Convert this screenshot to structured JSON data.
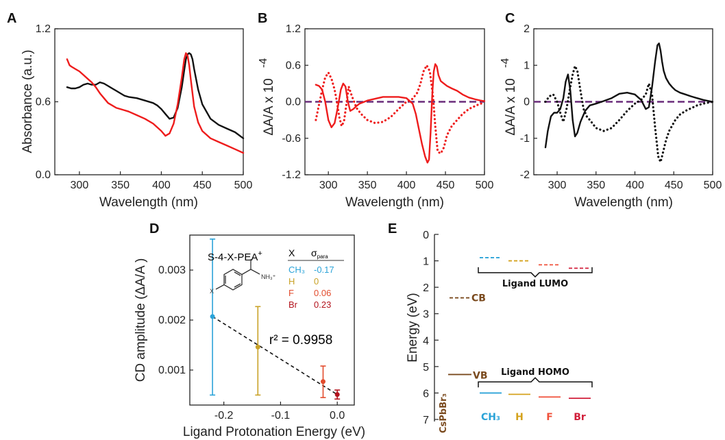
{
  "chart_data": [
    {
      "panel": "A",
      "type": "line",
      "xlabel": "Wavelength (nm)",
      "ylabel": "Absorbance (a.u.)",
      "xlim": [
        270,
        500
      ],
      "ylim": [
        0.0,
        1.2
      ],
      "xticks": [
        "300",
        "350",
        "400",
        "450",
        "500"
      ],
      "yticks": [
        "0.0",
        "0.6",
        "1.2"
      ],
      "colors": {
        "red": "#ee1c1c",
        "black": "#111111"
      },
      "series": [
        {
          "color": "#111111",
          "style": "solid",
          "x": [
            285,
            290,
            295,
            300,
            305,
            310,
            315,
            320,
            325,
            330,
            335,
            340,
            345,
            350,
            355,
            360,
            370,
            380,
            390,
            395,
            400,
            405,
            410,
            415,
            420,
            425,
            428,
            430,
            432,
            434,
            436,
            438,
            440,
            445,
            450,
            460,
            470,
            480,
            490,
            500
          ],
          "y": [
            0.72,
            0.71,
            0.71,
            0.72,
            0.74,
            0.75,
            0.74,
            0.74,
            0.76,
            0.75,
            0.73,
            0.71,
            0.69,
            0.67,
            0.65,
            0.64,
            0.63,
            0.61,
            0.59,
            0.57,
            0.54,
            0.5,
            0.46,
            0.47,
            0.55,
            0.72,
            0.86,
            0.95,
            0.99,
            1.0,
            0.99,
            0.95,
            0.87,
            0.7,
            0.58,
            0.46,
            0.41,
            0.38,
            0.35,
            0.3
          ]
        },
        {
          "color": "#ee1c1c",
          "style": "solid",
          "x": [
            285,
            288,
            290,
            295,
            300,
            305,
            310,
            315,
            320,
            325,
            330,
            335,
            340,
            345,
            350,
            355,
            360,
            370,
            380,
            390,
            400,
            405,
            410,
            415,
            420,
            425,
            428,
            430,
            432,
            434,
            436,
            440,
            445,
            450,
            460,
            470,
            480,
            490,
            500
          ],
          "y": [
            0.95,
            0.9,
            0.89,
            0.87,
            0.85,
            0.82,
            0.79,
            0.76,
            0.72,
            0.67,
            0.63,
            0.59,
            0.57,
            0.55,
            0.54,
            0.53,
            0.52,
            0.49,
            0.46,
            0.42,
            0.36,
            0.32,
            0.34,
            0.42,
            0.58,
            0.8,
            0.95,
            1.0,
            0.98,
            0.9,
            0.78,
            0.56,
            0.43,
            0.36,
            0.3,
            0.27,
            0.24,
            0.21,
            0.18
          ]
        }
      ]
    },
    {
      "panel": "B",
      "type": "line",
      "xlabel": "Wavelength (nm)",
      "ylabel": "ΔA/A x 10",
      "ylabel_exp": "-4",
      "xlim": [
        270,
        500
      ],
      "ylim": [
        -1.2,
        1.2
      ],
      "xticks": [
        "300",
        "350",
        "400",
        "450",
        "500"
      ],
      "yticks": [
        "-1.2",
        "-0.6",
        "0.0",
        "0.6",
        "1.2"
      ],
      "baseline_color": "#6a2b7a",
      "series": [
        {
          "color": "#ee1c1c",
          "style": "solid",
          "x": [
            284,
            288,
            292,
            296,
            300,
            304,
            308,
            312,
            316,
            319,
            322,
            325,
            328,
            332,
            336,
            340,
            350,
            360,
            370,
            380,
            390,
            400,
            408,
            412,
            416,
            420,
            424,
            427,
            429,
            431,
            433,
            435,
            437,
            439,
            441,
            444,
            448,
            452,
            458,
            465,
            472,
            480,
            488,
            495,
            500
          ],
          "y": [
            0.28,
            0.26,
            0.2,
            0.0,
            -0.3,
            -0.42,
            -0.35,
            -0.1,
            0.2,
            0.3,
            0.25,
            0.0,
            -0.15,
            -0.12,
            -0.07,
            -0.03,
            0.02,
            0.05,
            0.08,
            0.08,
            0.08,
            0.06,
            -0.03,
            -0.2,
            -0.45,
            -0.7,
            -0.9,
            -1.0,
            -0.95,
            -0.5,
            0.1,
            0.5,
            0.62,
            0.58,
            0.44,
            0.34,
            0.3,
            0.26,
            0.22,
            0.18,
            0.12,
            0.07,
            0.04,
            0.02,
            0.01
          ]
        },
        {
          "color": "#ee1c1c",
          "style": "dotted",
          "x": [
            284,
            288,
            292,
            296,
            300,
            304,
            308,
            311,
            314,
            317,
            320,
            323,
            326,
            330,
            336,
            342,
            350,
            360,
            370,
            380,
            390,
            400,
            408,
            414,
            418,
            422,
            426,
            430,
            434,
            437,
            440,
            444,
            448,
            452,
            458,
            465,
            472,
            480,
            488,
            495,
            500
          ],
          "y": [
            -0.3,
            -0.05,
            0.2,
            0.4,
            0.48,
            0.38,
            0.2,
            0.0,
            -0.25,
            -0.4,
            -0.32,
            -0.05,
            0.25,
            0.1,
            -0.1,
            -0.2,
            -0.3,
            -0.35,
            -0.33,
            -0.25,
            -0.12,
            0.0,
            0.05,
            0.15,
            0.3,
            0.5,
            0.6,
            0.5,
            0.1,
            -0.4,
            -0.82,
            -0.85,
            -0.75,
            -0.55,
            -0.4,
            -0.3,
            -0.2,
            -0.12,
            -0.07,
            -0.03,
            -0.02
          ]
        }
      ]
    },
    {
      "panel": "C",
      "type": "line",
      "xlabel": "Wavelength (nm)",
      "ylabel": "ΔA/A x 10",
      "ylabel_exp": "-4",
      "xlim": [
        270,
        500
      ],
      "ylim": [
        -2,
        2
      ],
      "xticks": [
        "300",
        "350",
        "400",
        "450",
        "500"
      ],
      "yticks": [
        "-2",
        "-1",
        "0",
        "1",
        "2"
      ],
      "baseline_color": "#6a2b7a",
      "series": [
        {
          "color": "#111111",
          "style": "solid",
          "x": [
            285,
            288,
            292,
            296,
            300,
            304,
            308,
            311,
            314,
            317,
            320,
            323,
            326,
            330,
            336,
            342,
            350,
            360,
            370,
            380,
            390,
            400,
            408,
            414,
            418,
            422,
            426,
            429,
            431,
            433,
            435,
            437,
            440,
            444,
            448,
            452,
            458,
            465,
            472,
            480,
            488,
            495,
            500
          ],
          "y": [
            -1.25,
            -0.8,
            -0.4,
            -0.3,
            -0.3,
            -0.2,
            0.1,
            0.55,
            0.75,
            0.3,
            -0.5,
            -0.95,
            -0.85,
            -0.55,
            -0.25,
            -0.1,
            -0.05,
            0.02,
            0.1,
            0.22,
            0.25,
            0.2,
            0.05,
            -0.2,
            -0.15,
            0.4,
            1.1,
            1.55,
            1.6,
            1.4,
            1.1,
            0.85,
            0.65,
            0.5,
            0.4,
            0.32,
            0.25,
            0.2,
            0.15,
            0.1,
            0.05,
            0.02,
            0.0
          ]
        },
        {
          "color": "#111111",
          "style": "dotted",
          "x": [
            285,
            290,
            295,
            300,
            304,
            308,
            312,
            316,
            320,
            323,
            326,
            330,
            334,
            338,
            342,
            350,
            360,
            370,
            380,
            390,
            400,
            408,
            414,
            418,
            422,
            426,
            430,
            433,
            436,
            440,
            444,
            448,
            452,
            458,
            465,
            472,
            480,
            488,
            495,
            500
          ],
          "y": [
            0.0,
            0.15,
            0.2,
            0.0,
            -0.3,
            -0.55,
            -0.2,
            0.3,
            0.75,
            0.98,
            0.85,
            0.3,
            -0.2,
            -0.4,
            -0.5,
            -0.72,
            -0.8,
            -0.72,
            -0.5,
            -0.25,
            -0.05,
            0.05,
            0.2,
            0.5,
            0.2,
            -0.7,
            -1.5,
            -1.65,
            -1.4,
            -1.05,
            -0.8,
            -0.65,
            -0.5,
            -0.35,
            -0.25,
            -0.18,
            -0.1,
            -0.05,
            -0.02,
            0.0
          ]
        }
      ]
    },
    {
      "panel": "D",
      "type": "scatter",
      "xlabel": "Ligand Protonation Energy (eV)",
      "ylabel": "CD amplitude (ΔA/A )",
      "xlim": [
        -0.26,
        0.03
      ],
      "ylim": [
        0.0003,
        0.0037
      ],
      "xticks": [
        "-0.2",
        "-0.1",
        "0.0"
      ],
      "yticks": [
        "0.001",
        "0.002",
        "0.003"
      ],
      "fit_label": "r² = 0.9958",
      "fit_line": {
        "x": [
          -0.22,
          0.0
        ],
        "y": [
          0.00207,
          0.00051
        ]
      },
      "points": [
        {
          "x": -0.22,
          "y": 0.00207,
          "err_low": 0.0005,
          "err_high": 0.00362,
          "color": "#2ba3d8"
        },
        {
          "x": -0.14,
          "y": 0.00146,
          "err_low": 0.0005,
          "err_high": 0.00227,
          "color": "#c9a227"
        },
        {
          "x": -0.025,
          "y": 0.00077,
          "err_low": 0.00045,
          "err_high": 0.00108,
          "color": "#e24b2c"
        },
        {
          "x": 0.0,
          "y": 0.00051,
          "err_low": 0.00042,
          "err_high": 0.0006,
          "color": "#b3131d"
        }
      ]
    },
    {
      "panel": "E",
      "type": "diagram",
      "ylabel": "Energy (eV)",
      "ylim": [
        7,
        0
      ],
      "yticks": [
        "0",
        "1",
        "2",
        "3",
        "4",
        "5",
        "6",
        "7"
      ],
      "cb": {
        "label": "CB",
        "energy": 2.4,
        "color": "#7a4a1e"
      },
      "vb": {
        "label": "VB",
        "energy": 5.3,
        "color": "#7a4a1e"
      },
      "material": "CsPbBr₃",
      "lumo_group_label": "Ligand LUMO",
      "homo_group_label": "Ligand HOMO",
      "ligands": [
        {
          "name": "CH₃",
          "lumo": 0.88,
          "homo": 6.0,
          "color": "#2ba3d8"
        },
        {
          "name": "H",
          "lumo": 1.0,
          "homo": 6.05,
          "color": "#d4a21c"
        },
        {
          "name": "F",
          "lumo": 1.15,
          "homo": 6.15,
          "color": "#f0503a"
        },
        {
          "name": "Br",
          "lumo": 1.28,
          "homo": 6.2,
          "color": "#d11f3a"
        }
      ]
    }
  ],
  "panels": {
    "a": "A",
    "b": "B",
    "c": "C",
    "d": "D",
    "e": "E"
  },
  "inset": {
    "molecule_label": "S-4-X-PEA",
    "molecule_charge": "+",
    "col_x": "X",
    "col_sigma": "σ",
    "col_sigma_sub": "para",
    "rows": [
      {
        "x": "CH₃",
        "s": "-0.17",
        "color": "#2ba3d8"
      },
      {
        "x": "H",
        "s": "0",
        "color": "#c9a227"
      },
      {
        "x": "F",
        "s": "0.06",
        "color": "#e24b2c"
      },
      {
        "x": "Br",
        "s": "0.23",
        "color": "#b3131d"
      }
    ],
    "atom_x": "X",
    "atom_nh3": "NH₃⁺"
  }
}
